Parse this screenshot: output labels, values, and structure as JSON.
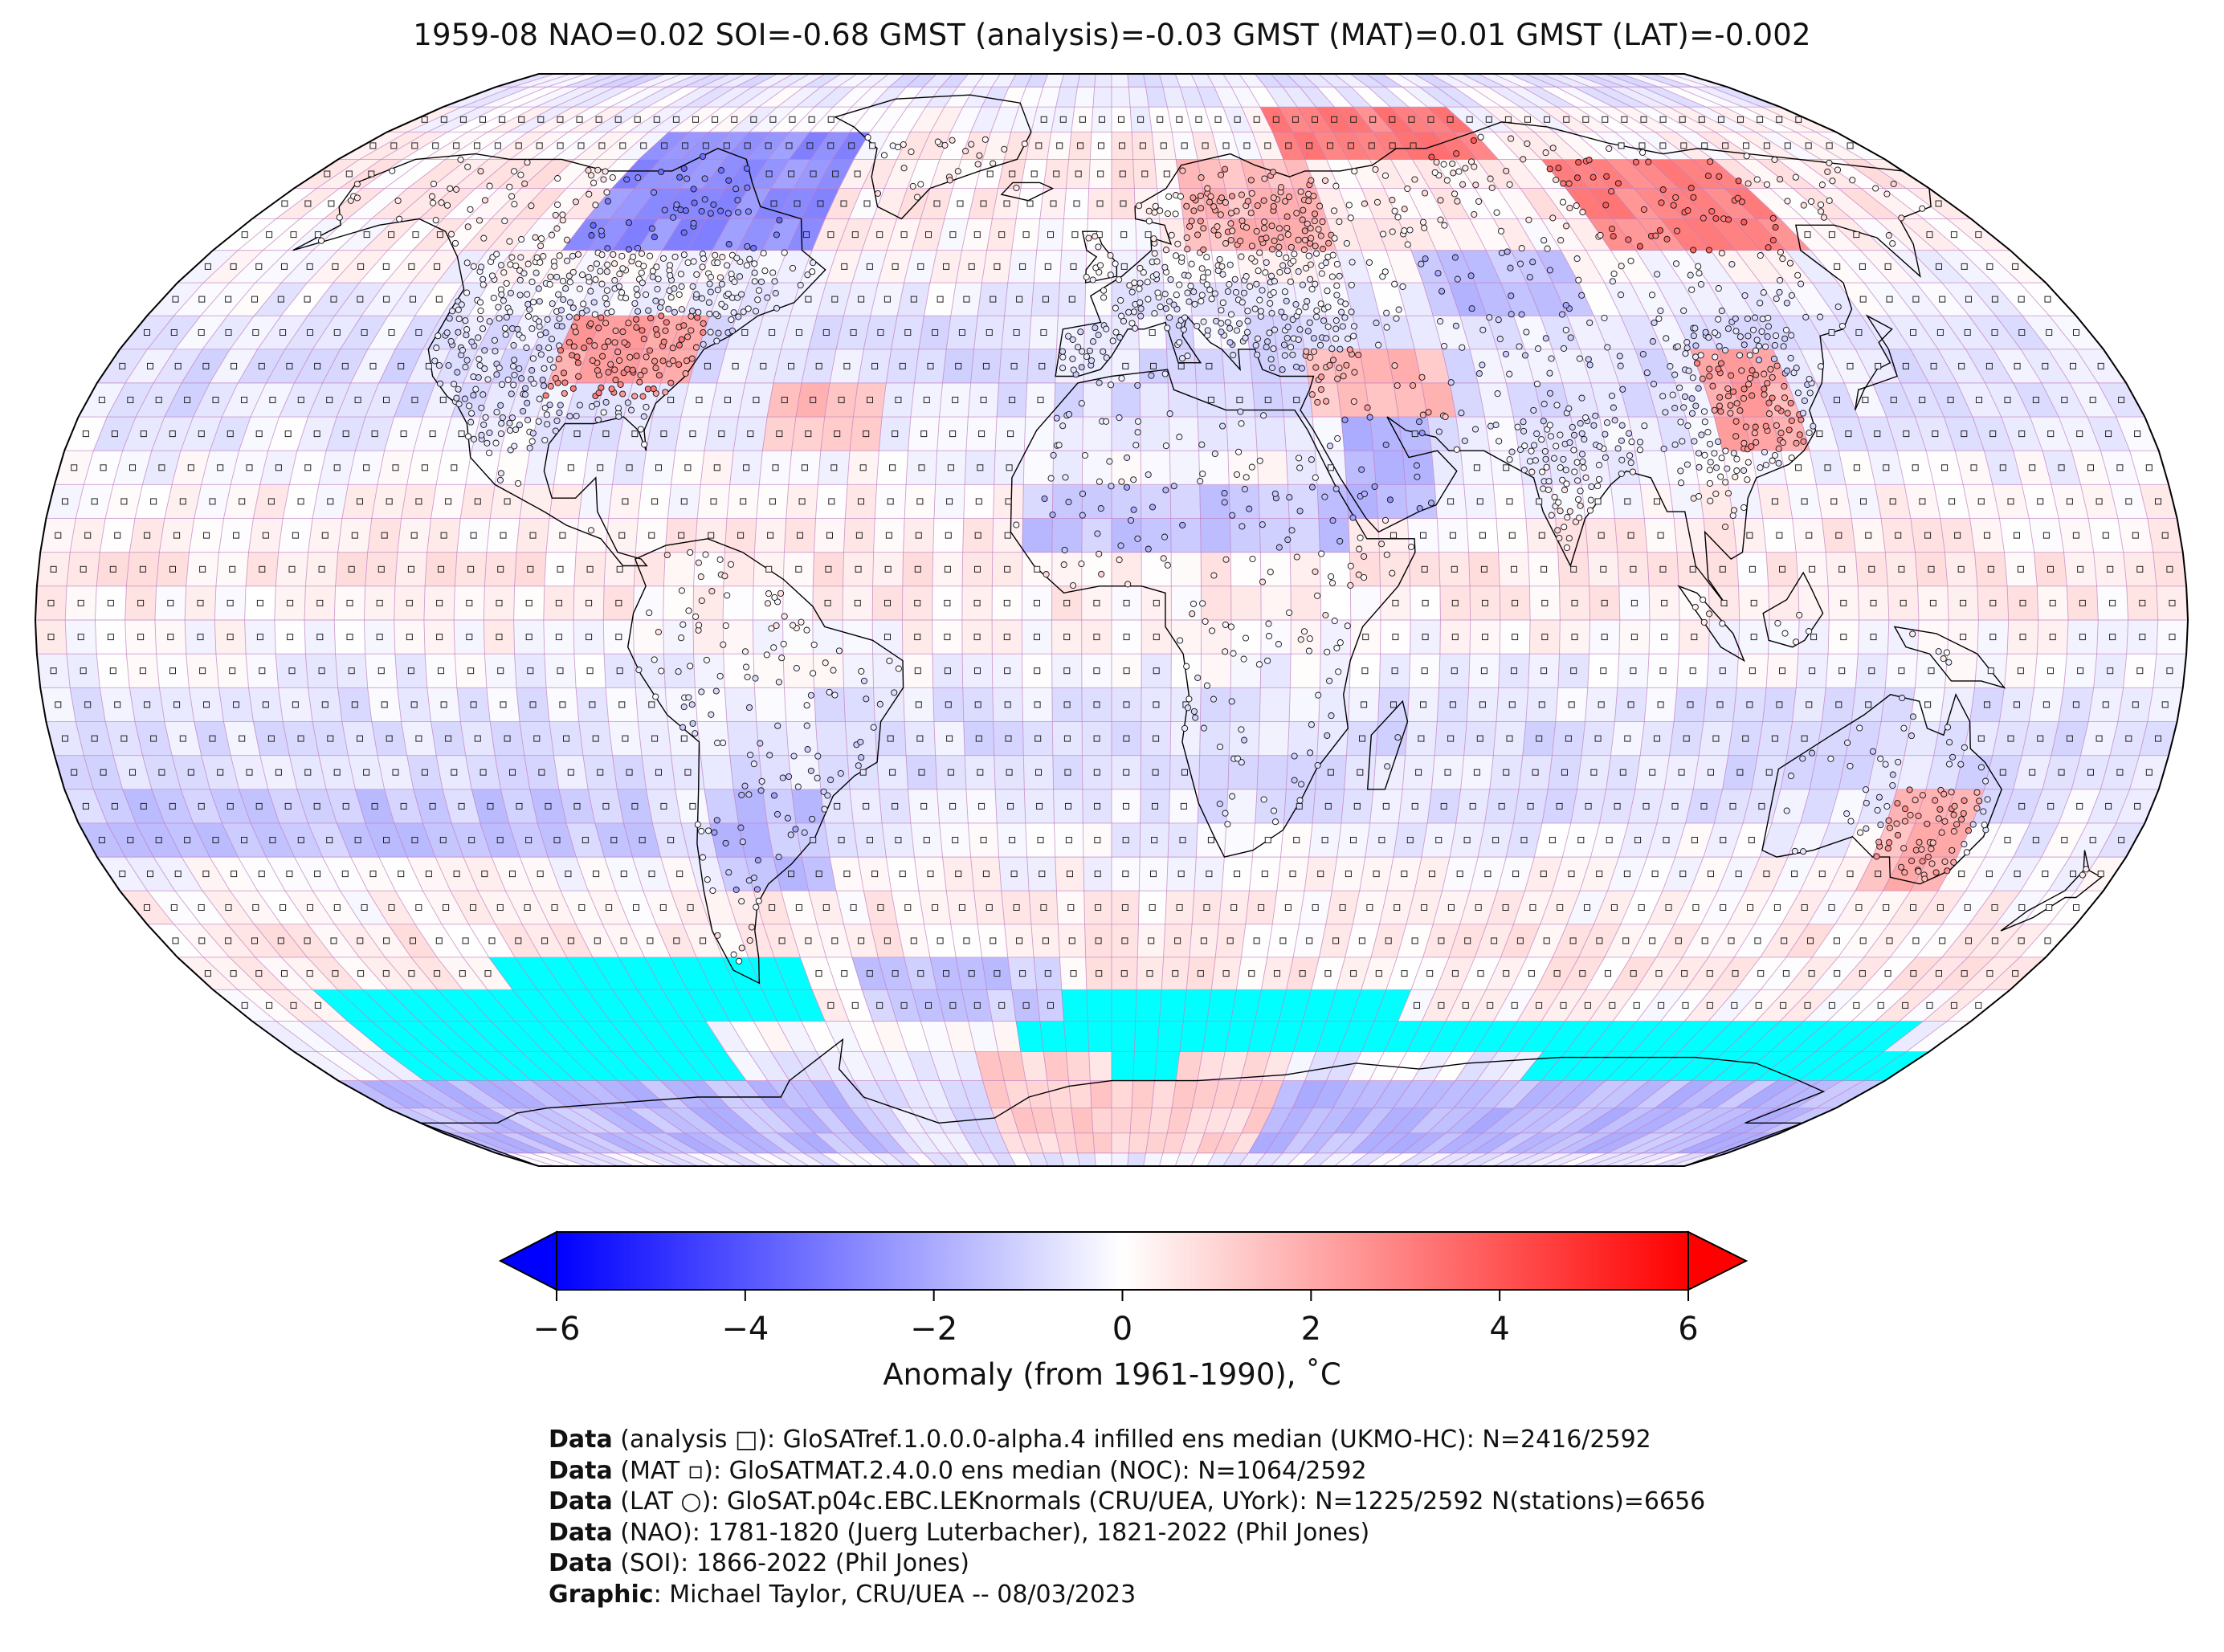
{
  "title": "1959-08 NAO=0.02 SOI=-0.68 GMST (analysis)=-0.03 GMST (MAT)=0.01 GMST (LAT)=-0.002",
  "colors": {
    "cold_max": "#0000ff",
    "neutral": "#ffffff",
    "warm_max": "#ff0000",
    "missing": "#00ffff",
    "grid": "#c080c0",
    "coast": "#000000"
  },
  "colorbar": {
    "min": -6,
    "max": 6,
    "ticks": [
      "−6",
      "−4",
      "−2",
      "0",
      "2",
      "4",
      "6"
    ],
    "tick_values": [
      -6,
      -4,
      -2,
      0,
      2,
      4,
      6
    ],
    "label": "Anomaly (from 1961-1990), ˚C",
    "extend": "both"
  },
  "map": {
    "projection": "Robinson",
    "grid_resolution_deg": 5,
    "overlay_markers": {
      "analysis": "square",
      "MAT": "small-square",
      "LAT": "circle"
    },
    "anomaly_zones": [
      {
        "region": "North America (north)",
        "lat": [
          55,
          75
        ],
        "lon": [
          -110,
          -60
        ],
        "anomaly": -2.6
      },
      {
        "region": "Central USA",
        "lat": [
          33,
          45
        ],
        "lon": [
          -100,
          -75
        ],
        "anomaly": 2.2
      },
      {
        "region": "Northern Siberia",
        "lat": [
          70,
          80
        ],
        "lon": [
          40,
          90
        ],
        "anomaly": 3.0
      },
      {
        "region": "Eastern Siberia",
        "lat": [
          55,
          70
        ],
        "lon": [
          100,
          140
        ],
        "anomaly": 2.8
      },
      {
        "region": "Scandinavia / NW Russia",
        "lat": [
          55,
          70
        ],
        "lon": [
          15,
          45
        ],
        "anomaly": 1.6
      },
      {
        "region": "China",
        "lat": [
          25,
          38
        ],
        "lon": [
          105,
          120
        ],
        "anomaly": 2.0
      },
      {
        "region": "Central Asia",
        "lat": [
          45,
          55
        ],
        "lon": [
          60,
          90
        ],
        "anomaly": -1.4
      },
      {
        "region": "Middle East",
        "lat": [
          30,
          40
        ],
        "lon": [
          35,
          60
        ],
        "anomaly": 1.5
      },
      {
        "region": "Arabia",
        "lat": [
          15,
          30
        ],
        "lon": [
          40,
          55
        ],
        "anomaly": -1.8
      },
      {
        "region": "Sahel",
        "lat": [
          10,
          20
        ],
        "lon": [
          -15,
          40
        ],
        "anomaly": -1.3
      },
      {
        "region": "N Atlantic",
        "lat": [
          25,
          35
        ],
        "lon": [
          -60,
          -40
        ],
        "anomaly": 1.5
      },
      {
        "region": "Australia SE",
        "lat": [
          -40,
          -25
        ],
        "lon": [
          135,
          150
        ],
        "anomaly": 1.8
      },
      {
        "region": "Southern South America",
        "lat": [
          -40,
          -25
        ],
        "lon": [
          -70,
          -50
        ],
        "anomaly": -1.4
      },
      {
        "region": "Southern Pacific band",
        "lat": [
          -35,
          -25
        ],
        "lon": [
          -180,
          -80
        ],
        "anomaly": -1.2
      },
      {
        "region": "Southern Ocean (Atlantic)",
        "lat": [
          -60,
          -50
        ],
        "lon": [
          -50,
          -10
        ],
        "anomaly": -1.2
      },
      {
        "region": "Antarctica (west)",
        "lat": [
          -85,
          -70
        ],
        "lon": [
          -180,
          -60
        ],
        "anomaly": -1.5
      },
      {
        "region": "Antarctica (east)",
        "lat": [
          -85,
          -70
        ],
        "lon": [
          40,
          180
        ],
        "anomaly": -1.6
      },
      {
        "region": "Antarctica (south Atlantic)",
        "lat": [
          -85,
          -65
        ],
        "lon": [
          -30,
          40
        ],
        "anomaly": 1.0
      }
    ],
    "missing_zones": [
      {
        "lat": [
          -60,
          -50
        ],
        "lon": [
          -120,
          -60
        ]
      },
      {
        "lat": [
          -70,
          -55
        ],
        "lon": [
          -160,
          -85
        ]
      },
      {
        "lat": [
          -60,
          -55
        ],
        "lon": [
          -10,
          60
        ]
      },
      {
        "lat": [
          -65,
          -60
        ],
        "lon": [
          -20,
          170
        ]
      },
      {
        "lat": [
          -70,
          -65
        ],
        "lon": [
          95,
          180
        ]
      },
      {
        "lat": [
          -70,
          -65
        ],
        "lon": [
          0,
          15
        ]
      }
    ]
  },
  "credits": [
    {
      "bold": "Data",
      "text": " (analysis □): GloSATref.1.0.0.0-alpha.4 infilled ens median (UKMO-HC): N=2416/2592"
    },
    {
      "bold": "Data",
      "text": " (MAT ▫): GloSATMAT.2.4.0.0 ens median (NOC): N=1064/2592"
    },
    {
      "bold": "Data",
      "text": " (LAT ○): GloSAT.p04c.EBC.LEKnormals (CRU/UEA, UYork): N=1225/2592 N(stations)=6656"
    },
    {
      "bold": "Data",
      "text": " (NAO): 1781-1820 (Juerg Luterbacher), 1821-2022 (Phil Jones)"
    },
    {
      "bold": "Data",
      "text": " (SOI): 1866-2022 (Phil Jones)"
    },
    {
      "bold": "Graphic",
      "text": ": Michael Taylor, CRU/UEA -- 08/03/2023"
    }
  ]
}
